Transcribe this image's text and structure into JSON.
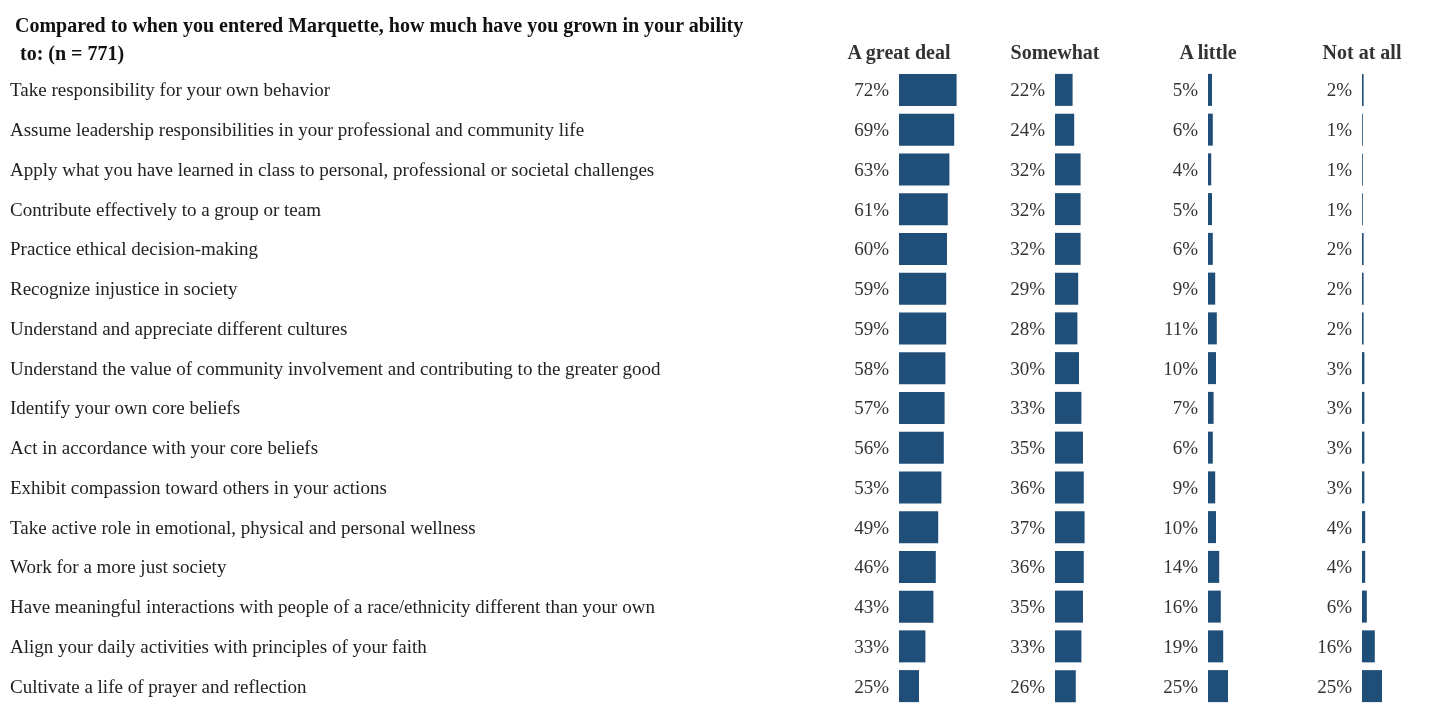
{
  "chart_data": [
    {
      "type": "bar",
      "orientation": "horizontal",
      "title": "Compared to when you entered Marquette, how much have you grown in your ability to: (n = 771)",
      "categories": [
        "Take responsibility for your own behavior",
        "Assume leadership responsibilities in your professional and community life",
        "Apply what you have learned in class to personal, professional or societal challenges",
        "Contribute effectively to a group or team",
        "Practice ethical decision-making",
        "Recognize injustice in society",
        "Understand and appreciate different cultures",
        "Understand the value of community involvement and contributing to the greater good",
        "Identify your own core beliefs",
        "Act in accordance with your core beliefs",
        "Exhibit compassion toward others in your actions",
        "Take active role in emotional, physical and personal wellness",
        "Work for a more just society",
        "Have meaningful interactions with people of a race/ethnicity different than your own",
        "Align your daily activities with principles of your faith",
        "Cultivate a life of prayer and reflection"
      ],
      "series": [
        {
          "name": "A great deal",
          "color": "#1f4e79",
          "values": [
            72,
            69,
            63,
            61,
            60,
            59,
            59,
            58,
            57,
            56,
            53,
            49,
            46,
            43,
            33,
            25
          ],
          "value_labels": [
            "72%",
            "69%",
            "63%",
            "61%",
            "60%",
            "59%",
            "59%",
            "58%",
            "57%",
            "56%",
            "53%",
            "49%",
            "46%",
            "43%",
            "33%",
            "25%"
          ]
        }
      ],
      "grid": false,
      "legend": false
    },
    {
      "type": "bar",
      "orientation": "horizontal",
      "categories": [
        null,
        null,
        null,
        null,
        null,
        null,
        null,
        null,
        null,
        null,
        null,
        null,
        null,
        null,
        null,
        null
      ],
      "series": [
        {
          "name": "Somewhat",
          "color": "#1f4e79",
          "values": [
            22,
            24,
            32,
            32,
            32,
            29,
            28,
            30,
            33,
            35,
            36,
            37,
            36,
            35,
            33,
            26
          ],
          "value_labels": [
            "22%",
            "24%",
            "32%",
            "32%",
            "32%",
            "29%",
            "28%",
            "30%",
            "33%",
            "35%",
            "36%",
            "37%",
            "36%",
            "35%",
            "33%",
            "26%"
          ]
        }
      ],
      "grid": false,
      "legend": false
    },
    {
      "type": "bar",
      "orientation": "horizontal",
      "categories": [
        null,
        null,
        null,
        null,
        null,
        null,
        null,
        null,
        null,
        null,
        null,
        null,
        null,
        null,
        null,
        null
      ],
      "series": [
        {
          "name": "A little",
          "color": "#1f4e79",
          "values": [
            5,
            6,
            4,
            5,
            6,
            9,
            11,
            10,
            7,
            6,
            9,
            10,
            14,
            16,
            19,
            25
          ],
          "value_labels": [
            "5%",
            "6%",
            "4%",
            "5%",
            "6%",
            "9%",
            "11%",
            "10%",
            "7%",
            "6%",
            "9%",
            "10%",
            "14%",
            "16%",
            "19%",
            "25%"
          ]
        }
      ],
      "grid": false,
      "legend": false
    },
    {
      "type": "bar",
      "orientation": "horizontal",
      "categories": [
        null,
        null,
        null,
        null,
        null,
        null,
        null,
        null,
        null,
        null,
        null,
        null,
        null,
        null,
        null,
        null
      ],
      "series": [
        {
          "name": "Not at all",
          "color": "#1f4e79",
          "values": [
            2,
            1,
            1,
            1,
            2,
            2,
            2,
            3,
            3,
            3,
            3,
            4,
            4,
            6,
            16,
            25
          ],
          "value_labels": [
            "2%",
            "1%",
            "1%",
            "1%",
            "2%",
            "2%",
            "2%",
            "3%",
            "3%",
            "3%",
            "3%",
            "4%",
            "4%",
            "6%",
            "16%",
            "25%"
          ]
        }
      ],
      "grid": false,
      "legend": false
    }
  ]
}
